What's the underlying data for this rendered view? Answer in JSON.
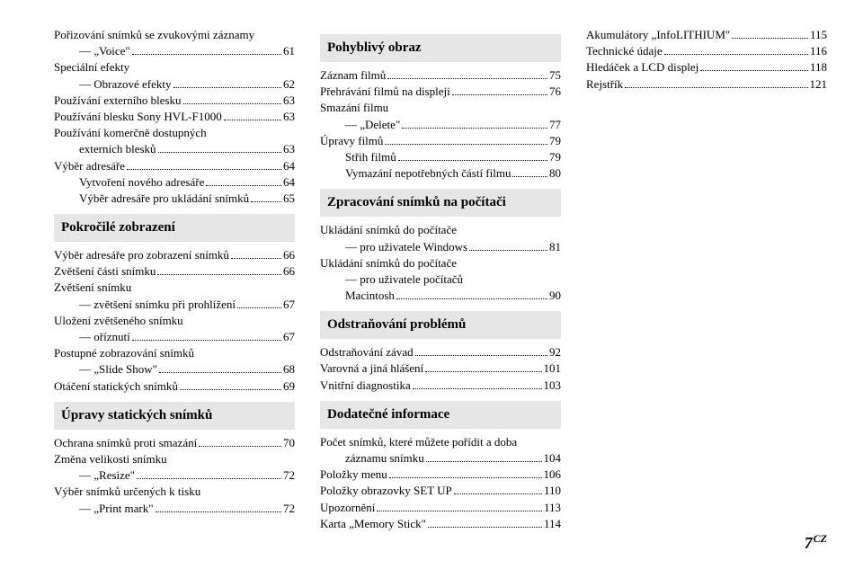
{
  "columns": [
    {
      "entries": [
        {
          "text": "Pořizování snímků se zvukovými záznamy"
        },
        {
          "text": "— „Voice\"",
          "sub": true,
          "page": "61"
        },
        {
          "text": "Speciální efekty"
        },
        {
          "text": "— Obrazové efekty",
          "sub": true,
          "page": "62"
        },
        {
          "text": "Používání externího blesku",
          "page": "63"
        },
        {
          "text": "Používání blesku Sony HVL-F1000",
          "sub": false,
          "page": "63"
        },
        {
          "text": "Používání komerčně dostupných"
        },
        {
          "text": "externích blesků",
          "sub": true,
          "page": "63"
        },
        {
          "text": "Výběr adresáře",
          "page": "64"
        },
        {
          "text": "Vytvoření nového adresáře",
          "sub": true,
          "page": "64"
        },
        {
          "text": "Výběr adresáře pro ukládání snímků",
          "sub": true,
          "page": "65"
        },
        {
          "section": "Pokročilé zobrazení"
        },
        {
          "text": "Výběr adresáře pro zobrazení snímků",
          "page": "66"
        },
        {
          "text": "Zvětšení části snímku",
          "page": "66"
        },
        {
          "text": "Zvětšení snímku"
        },
        {
          "text": "— zvětšení snímku při prohlížení",
          "sub": true,
          "page": "67"
        },
        {
          "text": "Uložení zvětšeného snímku"
        },
        {
          "text": "— oříznutí",
          "sub": true,
          "page": "67"
        },
        {
          "text": "Postupné zobrazování snímků"
        },
        {
          "text": "— „Slide Show\"",
          "sub": true,
          "page": "68"
        },
        {
          "text": "Otáčení statických snímků",
          "page": "69"
        },
        {
          "section": "Úpravy statických snímků"
        },
        {
          "text": "Ochrana snímků proti smazání",
          "page": "70"
        },
        {
          "text": "Změna velikosti snímku"
        },
        {
          "text": "— „Resize\"",
          "sub": true,
          "page": "72"
        },
        {
          "text": "Výběr snímků určených k tisku"
        },
        {
          "text": "— „Print mark\"",
          "sub": true,
          "page": "72"
        }
      ]
    },
    {
      "entries": [
        {
          "section": "Pohyblivý obraz"
        },
        {
          "text": "Záznam filmů",
          "page": "75"
        },
        {
          "text": "Přehrávání filmů na displeji",
          "page": "76"
        },
        {
          "text": "Smazání filmu"
        },
        {
          "text": "— „Delete\"",
          "sub": true,
          "page": "77"
        },
        {
          "text": "Úpravy filmů",
          "page": "79"
        },
        {
          "text": "Střih filmů",
          "sub": true,
          "page": "79"
        },
        {
          "text": "Vymazání nepotřebných částí filmu",
          "sub": true,
          "page": "80"
        },
        {
          "section": "Zpracování snímků na počítači"
        },
        {
          "text": "Ukládání snímků do počítače"
        },
        {
          "text": "— pro uživatele Windows",
          "sub": true,
          "page": "81"
        },
        {
          "text": "Ukládání snímků do počítače"
        },
        {
          "text": "— pro uživatele počítačů",
          "sub": true
        },
        {
          "text": "Macintosh",
          "sub": true,
          "page": "90"
        },
        {
          "section": "Odstraňování problémů"
        },
        {
          "text": "Odstraňování závad",
          "page": "92"
        },
        {
          "text": "Varovná a jiná hlášení",
          "page": "101"
        },
        {
          "text": "Vnitřní diagnostika",
          "page": "103"
        },
        {
          "section": "Dodatečné informace"
        },
        {
          "text": "Počet snímků, které můžete pořídit a doba"
        },
        {
          "text": "záznamu snímku",
          "sub": true,
          "page": "104"
        },
        {
          "text": "Položky menu",
          "page": "106"
        },
        {
          "text": "Položky obrazovky SET UP",
          "page": "110"
        },
        {
          "text": "Upozornění",
          "page": "113"
        },
        {
          "text": "Karta „Memory Stick\"",
          "page": "114"
        }
      ]
    },
    {
      "entries": [
        {
          "text": "Akumulátory „InfoLITHIUM\"",
          "page": "115"
        },
        {
          "text": "Technické údaje",
          "page": "116"
        },
        {
          "text": "Hledáček a LCD displej",
          "page": "118"
        },
        {
          "text": "Rejstřík",
          "page": "121"
        }
      ]
    }
  ],
  "footer": {
    "num": "7",
    "suffix": "CZ"
  }
}
